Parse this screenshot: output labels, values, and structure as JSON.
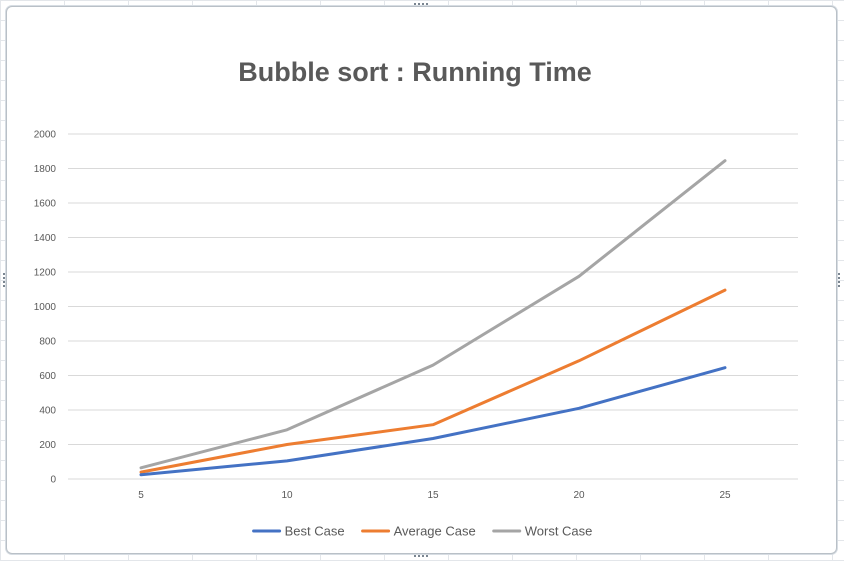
{
  "chart_data": {
    "type": "line",
    "title": "Bubble sort : Running Time",
    "xlabel": "",
    "ylabel": "",
    "x": [
      5,
      10,
      15,
      20,
      25
    ],
    "x_tick_labels": [
      "5",
      "10",
      "15",
      "20",
      "25"
    ],
    "y_tick_labels": [
      "0",
      "200",
      "400",
      "600",
      "800",
      "1000",
      "1200",
      "1400",
      "1600",
      "1800",
      "2000"
    ],
    "ylim": [
      0,
      2000
    ],
    "y_step": 200,
    "grid": "horizontal",
    "legend_position": "bottom",
    "series": [
      {
        "name": "Best Case",
        "color": "#4472c4",
        "values": [
          25,
          105,
          235,
          410,
          645
        ]
      },
      {
        "name": "Average Case",
        "color": "#ed7d31",
        "values": [
          40,
          200,
          315,
          685,
          1095
        ]
      },
      {
        "name": "Worst Case",
        "color": "#a5a5a5",
        "values": [
          65,
          285,
          660,
          1175,
          1845
        ]
      }
    ]
  }
}
